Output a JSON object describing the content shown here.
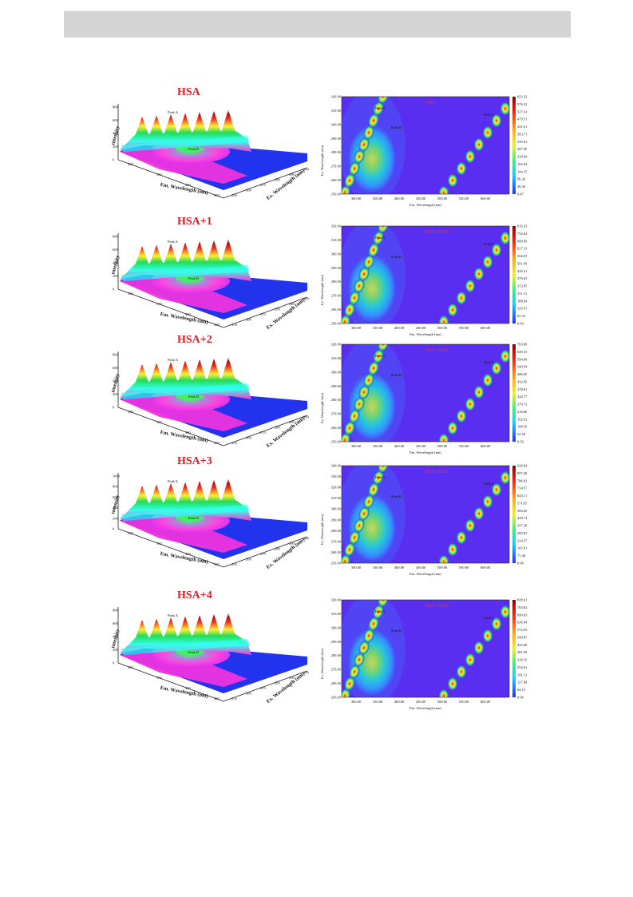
{
  "header": {},
  "panels": [
    {
      "surface": {
        "title": "HSA",
        "y_axis_label": "Intensity",
        "x_axis_label": "Em. Wavelength (nm)",
        "z_axis_label": "Ex. Wavelength (nm)",
        "y_ticks": [
          "0",
          "200",
          "400",
          "600",
          "800"
        ],
        "x_ticks": [
          "300",
          "350",
          "400",
          "450"
        ],
        "z_ticks": [
          "250",
          "260",
          "270",
          "280",
          "290",
          "300"
        ],
        "peak_a": "Peak A",
        "peak_b": "Peak B"
      },
      "contour": {
        "title": "HSA",
        "y_axis_label": "Ex. Wavelength (nm)",
        "x_axis_label": "Em. Wavelength (nm)",
        "y_ticks": [
          "320.00",
          "310.00",
          "300.00",
          "290.00",
          "280.00",
          "270.00",
          "260.00",
          "250.00"
        ],
        "x_ticks": [
          "300.00",
          "350.00",
          "400.00",
          "450.00",
          "500.00",
          "550.00",
          "600.00"
        ],
        "scale": [
          "823.32",
          "576.32",
          "527.41",
          "479.51",
          "431.61",
          "383.71",
          "335.81",
          "287.90",
          "239.94",
          "192.04",
          "144.15",
          "96.26",
          "48.36",
          "0.47"
        ],
        "peak_a": "Peak A",
        "peak_b": "Peak B"
      }
    },
    {
      "surface": {
        "title": "HSA+1",
        "y_axis_label": "Intensity",
        "x_axis_label": "Em. Wavelength (nm)",
        "z_axis_label": "Ex. Wavelength (nm)",
        "y_ticks": [
          "0",
          "200",
          "400",
          "600",
          "800"
        ],
        "x_ticks": [
          "300",
          "350",
          "400",
          "450"
        ],
        "z_ticks": [
          "250",
          "260",
          "270",
          "280",
          "290",
          "300"
        ],
        "peak_a": "Peak A",
        "peak_b": "Peak B"
      },
      "contour": {
        "title": "HSA+B2L1",
        "y_axis_label": "Ex. Wavelength (nm)",
        "x_axis_label": "Em. Wavelength (nm)",
        "y_ticks": [
          "320.00",
          "310.00",
          "300.00",
          "290.00",
          "280.00",
          "270.00",
          "260.00",
          "250.00"
        ],
        "x_ticks": [
          "300.00",
          "350.00",
          "400.00",
          "450.00",
          "500.00",
          "550.00",
          "600.00"
        ],
        "scale": [
          "816.33",
          "752.64",
          "689.99",
          "627.33",
          "564.65",
          "501.96",
          "439.31",
          "376.63",
          "313.95",
          "251.31",
          "188.64",
          "125.97",
          "63.31",
          "0.64"
        ],
        "peak_a": "Peak A",
        "peak_b": "Peak B"
      }
    },
    {
      "surface": {
        "title": "HSA+2",
        "y_axis_label": "Intensity",
        "x_axis_label": "Em. Wavelength (nm)",
        "z_axis_label": "Ex. Wavelength (nm)",
        "y_ticks": [
          "0",
          "200",
          "400",
          "600",
          "800"
        ],
        "x_ticks": [
          "300",
          "350",
          "400",
          "450"
        ],
        "z_ticks": [
          "250",
          "260",
          "270",
          "280",
          "290",
          "300"
        ],
        "peak_a": "Peak A",
        "peak_b": "Peak B"
      },
      "contour": {
        "title": "HSA+B2L2",
        "y_axis_label": "Ex. Wavelength (nm)",
        "x_axis_label": "Em. Wavelength (nm)",
        "y_ticks": [
          "320.00",
          "310.00",
          "300.00",
          "290.00",
          "280.00",
          "270.00",
          "260.00",
          "250.00"
        ],
        "x_ticks": [
          "300.00",
          "350.00",
          "400.00",
          "450.00",
          "500.00",
          "550.00",
          "600.00"
        ],
        "scale": [
          "703.08",
          "649.53",
          "594.98",
          "540.94",
          "486.90",
          "432.85",
          "378.81",
          "324.77",
          "270.72",
          "216.68",
          "162.63",
          "108.59",
          "54.54",
          "0.50"
        ],
        "peak_a": "Peak A",
        "peak_b": "Peak B"
      }
    },
    {
      "surface": {
        "title": "HSA+3",
        "y_axis_label": "Intensity",
        "x_axis_label": "Em. Wavelength (nm)",
        "z_axis_label": "Ex. Wavelength (nm)",
        "y_ticks": [
          "0",
          "200",
          "400",
          "600",
          "800",
          "1000"
        ],
        "x_ticks": [
          "300",
          "350",
          "400",
          "450"
        ],
        "z_ticks": [
          "250",
          "260",
          "270",
          "280",
          "290",
          "300"
        ],
        "peak_a": "Peak A",
        "peak_b": "Peak B"
      },
      "contour": {
        "title": "HSA+B2L3",
        "y_axis_label": "Ex. Wavelength (nm)",
        "x_axis_label": "Em. Wavelength (nm)",
        "y_ticks": [
          "340.00",
          "330.00",
          "320.00",
          "310.00",
          "300.00",
          "290.00",
          "280.00",
          "270.00",
          "260.00",
          "250.00"
        ],
        "x_ticks": [
          "300.00",
          "350.00",
          "400.00",
          "450.00",
          "500.00",
          "550.00",
          "600.00"
        ],
        "scale": [
          "928.94",
          "857.48",
          "786.02",
          "714.57",
          "643.11",
          "571.65",
          "500.20",
          "428.74",
          "357.28",
          "285.83",
          "214.37",
          "142.91",
          "71.46",
          "0.00"
        ],
        "peak_a": "Peak A",
        "peak_b": "Peak B"
      }
    },
    {
      "surface": {
        "title": "HSA+4",
        "y_axis_label": "Intensity",
        "x_axis_label": "Em. Wavelength (nm)",
        "z_axis_label": "Ex. Wavelength (nm)",
        "y_ticks": [
          "0",
          "200",
          "400",
          "600",
          "800"
        ],
        "x_ticks": [
          "300",
          "350",
          "400",
          "450"
        ],
        "z_ticks": [
          "250",
          "260",
          "270",
          "280",
          "290",
          "300"
        ],
        "peak_a": "Peak A",
        "peak_b": "Peak B"
      },
      "contour": {
        "title": "HSA+B2L4",
        "y_axis_label": "Ex. Wavelength (nm)",
        "x_axis_label": "Em. Wavelength (nm)",
        "y_ticks": [
          "320.00",
          "310.00",
          "300.00",
          "290.00",
          "280.00",
          "270.00",
          "260.00",
          "250.00"
        ],
        "x_ticks": [
          "300.00",
          "350.00",
          "400.00",
          "450.00",
          "500.00",
          "550.00",
          "600.00"
        ],
        "scale": [
          "828.01",
          "763.82",
          "699.03",
          "636.94",
          "572.05",
          "508.87",
          "445.08",
          "381.99",
          "318.10",
          "254.61",
          "191.12",
          "127.64",
          "64.15",
          "0.66"
        ],
        "peak_a": "Peak A",
        "peak_b": "Peak B"
      }
    }
  ]
}
